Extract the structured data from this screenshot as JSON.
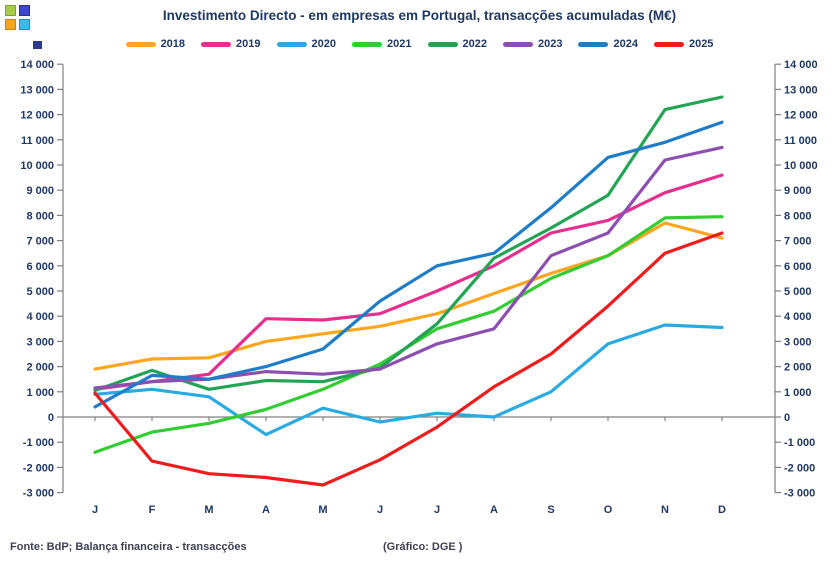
{
  "title": "Investimento Directo - em empresas em Portugal, transacções acumuladas (M€)",
  "logo": {
    "squares": [
      {
        "name": "logo-square-top-left",
        "fill": "#AACC44",
        "border": "#7FA52B"
      },
      {
        "name": "logo-square-top-right",
        "fill": "#3C46C8",
        "border": "#2B2E8C"
      },
      {
        "name": "logo-square-bottom-left",
        "fill": "#F2A71B",
        "border": "#C8860F"
      },
      {
        "name": "logo-square-bottom-right",
        "fill": "#3FB8E8",
        "border": "#1F8FC0"
      }
    ]
  },
  "footer": {
    "source": "Fonte: BdP; Balança financeira - transacções",
    "credit": "(Gráfico: DGE )"
  },
  "chart_data": {
    "type": "line",
    "title": "Investimento Directo - em empresas em Portugal, transacções acumuladas (M€)",
    "xlabel": "",
    "ylabel": "",
    "x": [
      "J",
      "F",
      "M",
      "A",
      "M",
      "J",
      "J",
      "A",
      "S",
      "O",
      "N",
      "D"
    ],
    "ylim": [
      -3000,
      14000
    ],
    "ytick_step": 1000,
    "grid": false,
    "zero_line": true,
    "dual_axis": true,
    "legend_position": "top",
    "axis_color": "#808080",
    "label_color": "#1F3864",
    "series": [
      {
        "name": "2018",
        "color": "#FFA51E",
        "values": [
          1900,
          2300,
          2350,
          3000,
          3300,
          3600,
          4100,
          4900,
          5700,
          6400,
          7700,
          7100
        ]
      },
      {
        "name": "2019",
        "color": "#E62E8F",
        "values": [
          1100,
          1400,
          1700,
          3900,
          3850,
          4100,
          5000,
          6000,
          7300,
          7800,
          8900,
          9600
        ]
      },
      {
        "name": "2020",
        "color": "#29ABE2",
        "values": [
          900,
          1100,
          800,
          -700,
          350,
          -200,
          150,
          0,
          1000,
          2900,
          3650,
          3550
        ]
      },
      {
        "name": "2021",
        "color": "#33CC33",
        "values": [
          -1400,
          -600,
          -250,
          300,
          1100,
          2100,
          3500,
          4200,
          5500,
          6400,
          7900,
          7950
        ]
      },
      {
        "name": "2022",
        "color": "#23A455",
        "values": [
          1050,
          1850,
          1100,
          1450,
          1400,
          1950,
          3700,
          6300,
          7500,
          8800,
          12200,
          12700
        ]
      },
      {
        "name": "2023",
        "color": "#8C4FB0",
        "values": [
          1150,
          1400,
          1500,
          1800,
          1700,
          1900,
          2900,
          3500,
          6400,
          7300,
          10200,
          10700
        ]
      },
      {
        "name": "2024",
        "color": "#1F7CC8",
        "values": [
          400,
          1650,
          1500,
          2000,
          2700,
          4600,
          6000,
          6500,
          8300,
          10300,
          10900,
          11700
        ]
      },
      {
        "name": "2025",
        "color": "#EE1C1C",
        "values": [
          950,
          -1750,
          -2250,
          -2400,
          -2700,
          -1700,
          -400,
          1200,
          2500,
          4400,
          6500,
          7300
        ]
      }
    ]
  }
}
